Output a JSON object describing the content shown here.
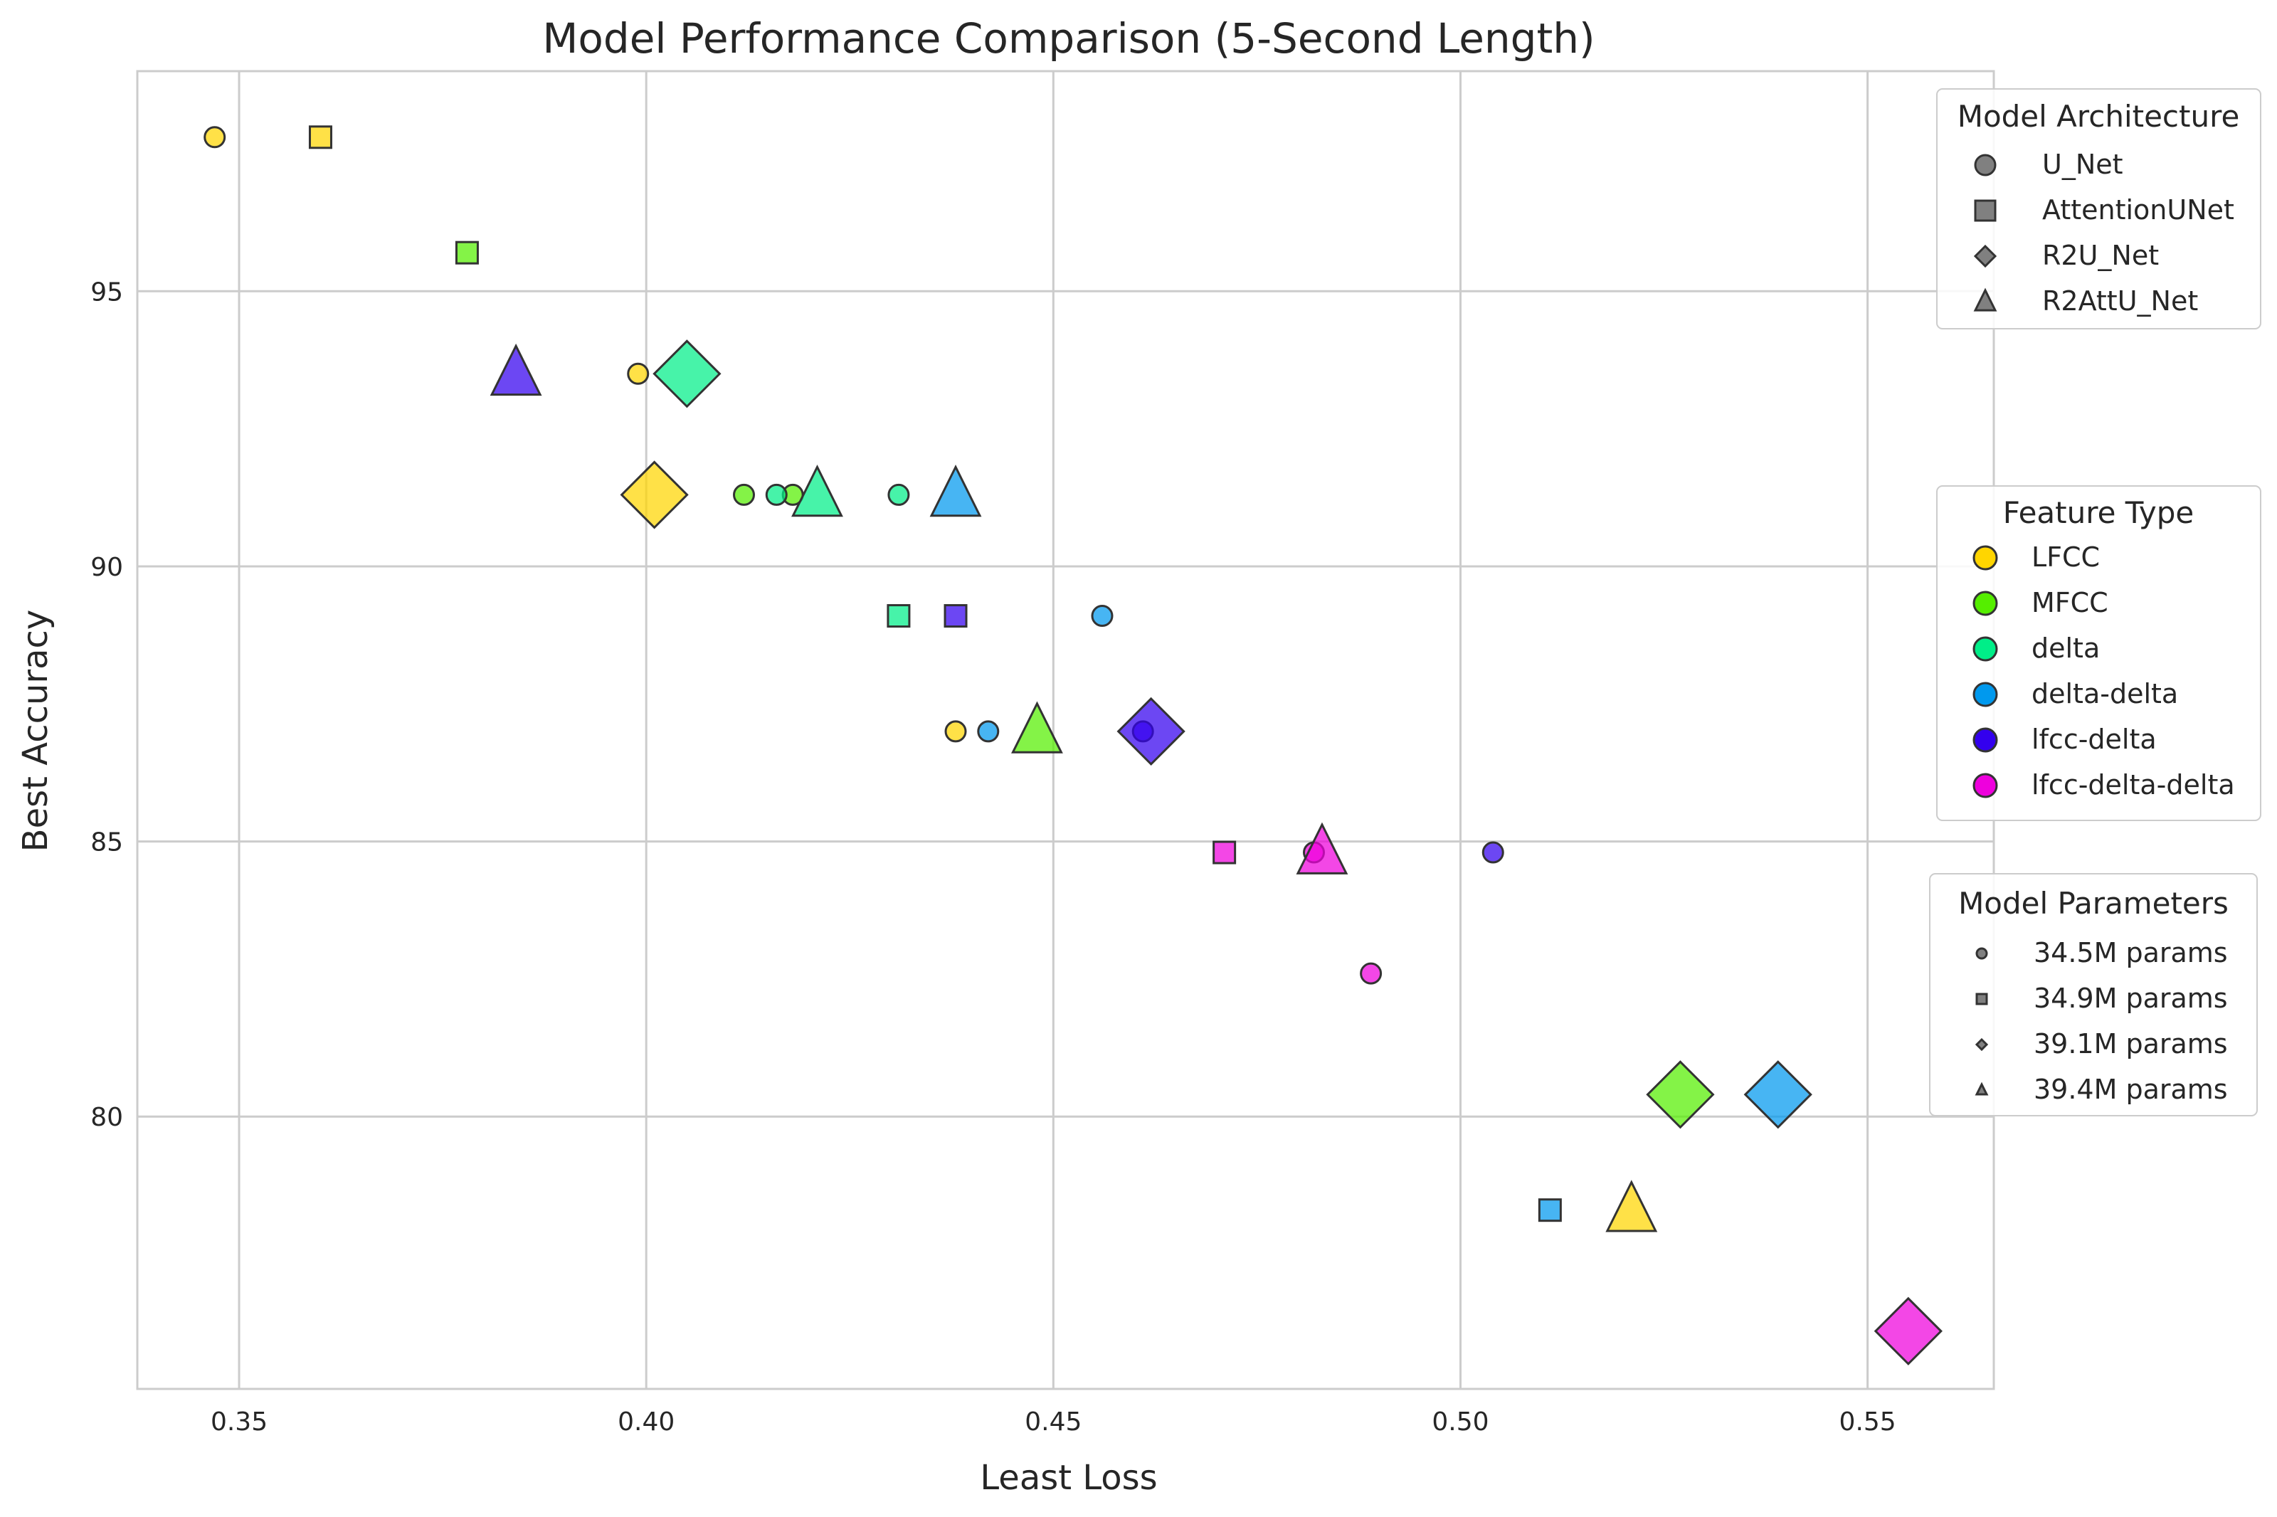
{
  "chart_data": {
    "type": "scatter",
    "title": "Model Performance Comparison (5-Second Length)",
    "xlabel": "Least Loss",
    "ylabel": "Best Accuracy",
    "xlim": [
      0.3375,
      0.5655
    ],
    "ylim": [
      75.05,
      99.0
    ],
    "xticks": [
      0.35,
      0.4,
      0.45,
      0.5,
      0.55
    ],
    "xtick_labels": [
      "0.35",
      "0.40",
      "0.45",
      "0.50",
      "0.55"
    ],
    "yticks": [
      80,
      85,
      90,
      95
    ],
    "ytick_labels": [
      "80",
      "85",
      "90",
      "95"
    ],
    "grid": true,
    "colors": {
      "LFCC": "#ffd500",
      "MFCC": "#55ee00",
      "delta": "#00ee88",
      "delta-delta": "#0099ee",
      "lfcc-delta": "#3300ee",
      "lfcc-delta-delta": "#ee00dd"
    },
    "legends": {
      "architecture": {
        "title": "Model Architecture",
        "placement": "top-right",
        "items": [
          {
            "label": "U_Net",
            "marker": "circle"
          },
          {
            "label": "AttentionUNet",
            "marker": "square"
          },
          {
            "label": "R2U_Net",
            "marker": "diamond"
          },
          {
            "label": "R2AttU_Net",
            "marker": "triangle"
          }
        ]
      },
      "feature": {
        "title": "Feature Type",
        "placement": "center-right",
        "items": [
          "LFCC",
          "MFCC",
          "delta",
          "delta-delta",
          "lfcc-delta",
          "lfcc-delta-delta"
        ]
      },
      "params": {
        "title": "Model Parameters",
        "placement": "lower-right",
        "items": [
          {
            "label": "34.5M params",
            "marker": "circle"
          },
          {
            "label": "34.9M params",
            "marker": "square"
          },
          {
            "label": "39.1M params",
            "marker": "diamond"
          },
          {
            "label": "39.4M params",
            "marker": "triangle"
          }
        ]
      }
    },
    "points": [
      {
        "x": 0.347,
        "y": 97.8,
        "model": "U_Net",
        "feature": "LFCC"
      },
      {
        "x": 0.399,
        "y": 93.5,
        "model": "U_Net",
        "feature": "LFCC"
      },
      {
        "x": 0.438,
        "y": 87.0,
        "model": "U_Net",
        "feature": "LFCC"
      },
      {
        "x": 0.412,
        "y": 91.3,
        "model": "U_Net",
        "feature": "MFCC"
      },
      {
        "x": 0.418,
        "y": 91.3,
        "model": "U_Net",
        "feature": "MFCC"
      },
      {
        "x": 0.416,
        "y": 91.3,
        "model": "U_Net",
        "feature": "delta"
      },
      {
        "x": 0.431,
        "y": 91.3,
        "model": "U_Net",
        "feature": "delta"
      },
      {
        "x": 0.442,
        "y": 87.0,
        "model": "U_Net",
        "feature": "delta-delta"
      },
      {
        "x": 0.456,
        "y": 89.1,
        "model": "U_Net",
        "feature": "delta-delta"
      },
      {
        "x": 0.461,
        "y": 87.0,
        "model": "U_Net",
        "feature": "lfcc-delta"
      },
      {
        "x": 0.504,
        "y": 84.8,
        "model": "U_Net",
        "feature": "lfcc-delta"
      },
      {
        "x": 0.482,
        "y": 84.8,
        "model": "U_Net",
        "feature": "lfcc-delta-delta"
      },
      {
        "x": 0.489,
        "y": 82.6,
        "model": "U_Net",
        "feature": "lfcc-delta-delta"
      },
      {
        "x": 0.36,
        "y": 97.8,
        "model": "AttentionUNet",
        "feature": "LFCC"
      },
      {
        "x": 0.378,
        "y": 95.7,
        "model": "AttentionUNet",
        "feature": "MFCC"
      },
      {
        "x": 0.431,
        "y": 89.1,
        "model": "AttentionUNet",
        "feature": "delta"
      },
      {
        "x": 0.511,
        "y": 78.3,
        "model": "AttentionUNet",
        "feature": "delta-delta"
      },
      {
        "x": 0.438,
        "y": 89.1,
        "model": "AttentionUNet",
        "feature": "lfcc-delta"
      },
      {
        "x": 0.471,
        "y": 84.8,
        "model": "AttentionUNet",
        "feature": "lfcc-delta-delta"
      },
      {
        "x": 0.401,
        "y": 91.3,
        "model": "R2U_Net",
        "feature": "LFCC"
      },
      {
        "x": 0.527,
        "y": 80.4,
        "model": "R2U_Net",
        "feature": "MFCC"
      },
      {
        "x": 0.405,
        "y": 93.5,
        "model": "R2U_Net",
        "feature": "delta"
      },
      {
        "x": 0.539,
        "y": 80.4,
        "model": "R2U_Net",
        "feature": "delta-delta"
      },
      {
        "x": 0.462,
        "y": 87.0,
        "model": "R2U_Net",
        "feature": "lfcc-delta"
      },
      {
        "x": 0.555,
        "y": 76.1,
        "model": "R2U_Net",
        "feature": "lfcc-delta-delta"
      },
      {
        "x": 0.521,
        "y": 78.3,
        "model": "R2AttU_Net",
        "feature": "LFCC"
      },
      {
        "x": 0.448,
        "y": 87.0,
        "model": "R2AttU_Net",
        "feature": "MFCC"
      },
      {
        "x": 0.421,
        "y": 91.3,
        "model": "R2AttU_Net",
        "feature": "delta"
      },
      {
        "x": 0.438,
        "y": 91.3,
        "model": "R2AttU_Net",
        "feature": "delta-delta"
      },
      {
        "x": 0.384,
        "y": 93.5,
        "model": "R2AttU_Net",
        "feature": "lfcc-delta"
      },
      {
        "x": 0.483,
        "y": 84.8,
        "model": "R2AttU_Net",
        "feature": "lfcc-delta-delta"
      }
    ]
  }
}
